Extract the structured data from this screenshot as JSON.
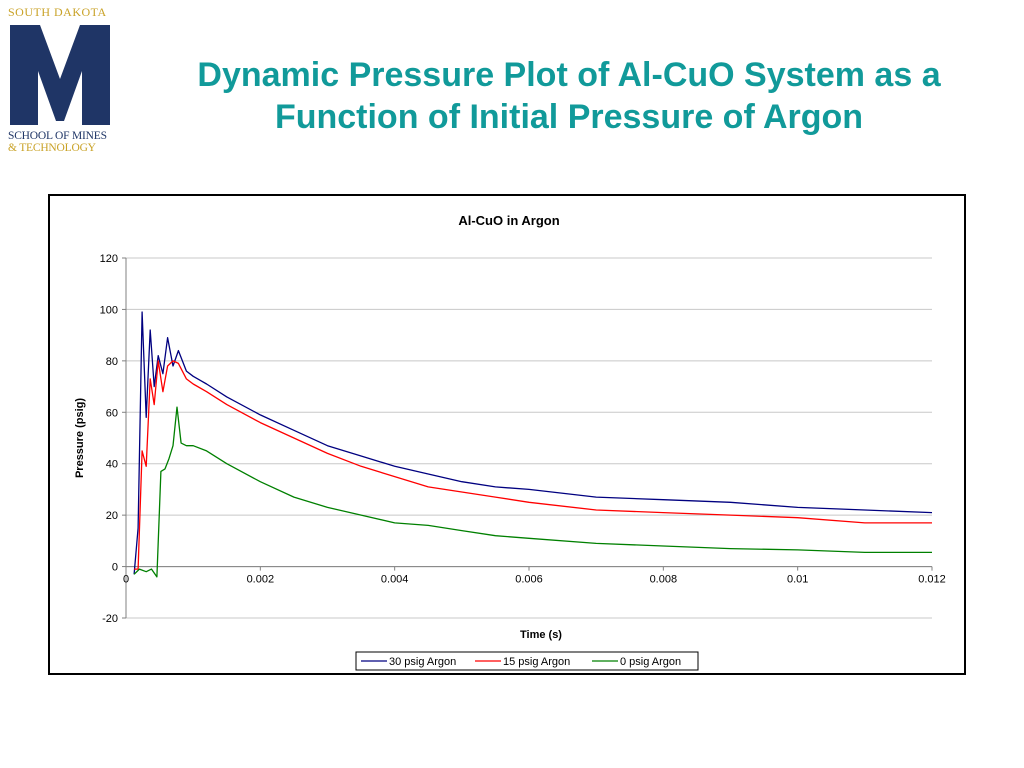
{
  "logo": {
    "top": "SOUTH DAKOTA",
    "letter": "M",
    "line1": "SCHOOL OF MINES",
    "line2": "& TECHNOLOGY"
  },
  "slide": {
    "title_line1": "Dynamic Pressure Plot of Al-CuO System as a",
    "title_line2": "Function of Initial Pressure of Argon"
  },
  "chart_data": {
    "type": "line",
    "title": "Al-CuO in Argon",
    "xlabel": "Time (s)",
    "ylabel": "Pressure (psig)",
    "xlim": [
      0,
      0.012
    ],
    "ylim": [
      -20,
      120
    ],
    "x_ticks": [
      "0",
      "0.002",
      "0.004",
      "0.006",
      "0.008",
      "0.01",
      "0.012"
    ],
    "y_ticks": [
      "120",
      "100",
      "80",
      "60",
      "40",
      "20",
      "0",
      "-20"
    ],
    "grid": "horizontal",
    "legend_position": "bottom",
    "series": [
      {
        "name": "30 psig Argon",
        "color": "#000080",
        "points": [
          [
            0.00012,
            -3
          ],
          [
            0.00018,
            15
          ],
          [
            0.00024,
            99
          ],
          [
            0.0003,
            58
          ],
          [
            0.00036,
            92
          ],
          [
            0.00042,
            70
          ],
          [
            0.00048,
            82
          ],
          [
            0.00055,
            75
          ],
          [
            0.00062,
            89
          ],
          [
            0.0007,
            78
          ],
          [
            0.00078,
            84
          ],
          [
            0.0009,
            76
          ],
          [
            0.001,
            74
          ],
          [
            0.0012,
            71
          ],
          [
            0.0015,
            66
          ],
          [
            0.002,
            59
          ],
          [
            0.0025,
            53
          ],
          [
            0.003,
            47
          ],
          [
            0.0035,
            43
          ],
          [
            0.004,
            39
          ],
          [
            0.0045,
            36
          ],
          [
            0.005,
            33
          ],
          [
            0.0055,
            31
          ],
          [
            0.006,
            30
          ],
          [
            0.007,
            27
          ],
          [
            0.008,
            26
          ],
          [
            0.009,
            25
          ],
          [
            0.01,
            23
          ],
          [
            0.011,
            22
          ],
          [
            0.012,
            21
          ]
        ]
      },
      {
        "name": "15 psig Argon",
        "color": "#ff0000",
        "points": [
          [
            0.00012,
            -1
          ],
          [
            0.00018,
            -1
          ],
          [
            0.00024,
            45
          ],
          [
            0.0003,
            39
          ],
          [
            0.00036,
            73
          ],
          [
            0.00042,
            63
          ],
          [
            0.00048,
            80
          ],
          [
            0.00055,
            68
          ],
          [
            0.00062,
            78
          ],
          [
            0.0007,
            80
          ],
          [
            0.00078,
            79
          ],
          [
            0.0009,
            73
          ],
          [
            0.001,
            71
          ],
          [
            0.0012,
            68
          ],
          [
            0.0015,
            63
          ],
          [
            0.002,
            56
          ],
          [
            0.0025,
            50
          ],
          [
            0.003,
            44
          ],
          [
            0.0035,
            39
          ],
          [
            0.004,
            35
          ],
          [
            0.0045,
            31
          ],
          [
            0.005,
            29
          ],
          [
            0.0055,
            27
          ],
          [
            0.006,
            25
          ],
          [
            0.007,
            22
          ],
          [
            0.008,
            21
          ],
          [
            0.009,
            20
          ],
          [
            0.01,
            19
          ],
          [
            0.011,
            17
          ],
          [
            0.012,
            17
          ]
        ]
      },
      {
        "name": "0 psig Argon",
        "color": "#008000",
        "points": [
          [
            0.00012,
            -3
          ],
          [
            0.0002,
            -1
          ],
          [
            0.0003,
            -2
          ],
          [
            0.00038,
            -1
          ],
          [
            0.00046,
            -4
          ],
          [
            0.00052,
            37
          ],
          [
            0.00058,
            38
          ],
          [
            0.00064,
            42
          ],
          [
            0.0007,
            47
          ],
          [
            0.00076,
            62
          ],
          [
            0.00082,
            48
          ],
          [
            0.0009,
            47
          ],
          [
            0.001,
            47
          ],
          [
            0.0012,
            45
          ],
          [
            0.0015,
            40
          ],
          [
            0.002,
            33
          ],
          [
            0.0025,
            27
          ],
          [
            0.003,
            23
          ],
          [
            0.0035,
            20
          ],
          [
            0.004,
            17
          ],
          [
            0.0045,
            16
          ],
          [
            0.005,
            14
          ],
          [
            0.0055,
            12
          ],
          [
            0.006,
            11
          ],
          [
            0.007,
            9
          ],
          [
            0.008,
            8
          ],
          [
            0.009,
            7
          ],
          [
            0.01,
            6.5
          ],
          [
            0.011,
            5.5
          ],
          [
            0.012,
            5.5
          ]
        ]
      }
    ]
  }
}
